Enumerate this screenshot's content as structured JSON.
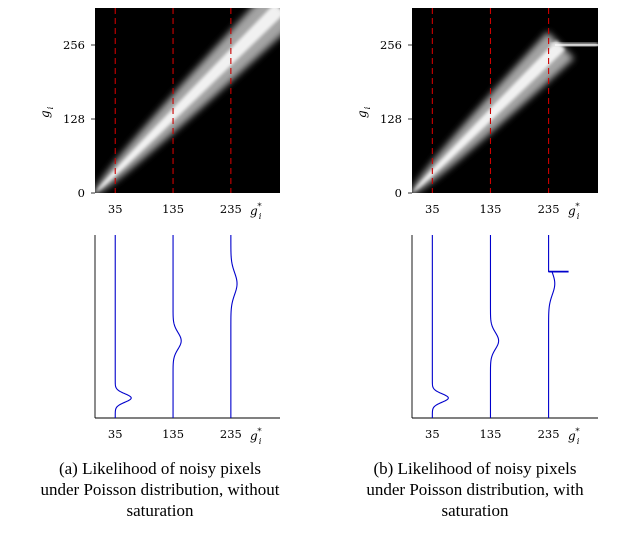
{
  "panels": [
    {
      "id": "a",
      "caption": [
        "(a) Likelihood of noisy pixels",
        "under Poisson distribution, without",
        "saturation"
      ],
      "saturation": false,
      "heatmap": {
        "y_ticks": [
          "0",
          "128",
          "256"
        ],
        "x_ticks": [
          "35",
          "135",
          "235"
        ],
        "ylabel": "g_i",
        "xlabel": "g_i^*"
      },
      "profiles": {
        "x_ticks": [
          "35",
          "135",
          "235"
        ],
        "xlabel": "g_i^*"
      }
    },
    {
      "id": "b",
      "caption": [
        "(b) Likelihood of noisy pixels",
        "under Poisson distribution, with",
        "saturation"
      ],
      "saturation": true,
      "heatmap": {
        "y_ticks": [
          "0",
          "128",
          "256"
        ],
        "x_ticks": [
          "35",
          "135",
          "235"
        ],
        "ylabel": "g_i",
        "xlabel": "g_i^*"
      },
      "profiles": {
        "x_ticks": [
          "35",
          "135",
          "235"
        ],
        "xlabel": "g_i^*"
      }
    }
  ],
  "chart_data": [
    {
      "type": "heatmap",
      "panel": "a",
      "x_ticks": [
        35,
        135,
        235
      ],
      "y_ticks": [
        0,
        128,
        256
      ],
      "dashed_lines_x": [
        35,
        135,
        235
      ],
      "saturation": false,
      "colors": {
        "background": "#000000",
        "band": "#ffffff",
        "dashed": "#cc0000"
      }
    },
    {
      "type": "heatmap",
      "panel": "b",
      "x_ticks": [
        35,
        135,
        235
      ],
      "y_ticks": [
        0,
        128,
        256
      ],
      "dashed_lines_x": [
        35,
        135,
        235
      ],
      "saturation": true,
      "colors": {
        "background": "#000000",
        "band": "#ffffff",
        "dashed": "#cc0000"
      }
    },
    {
      "type": "line",
      "panel": "a",
      "x_ticks": [
        35,
        135,
        235
      ],
      "series_at": [
        35,
        135,
        235
      ],
      "saturation": false,
      "color": "#0000cc"
    },
    {
      "type": "line",
      "panel": "b",
      "x_ticks": [
        35,
        135,
        235
      ],
      "series_at": [
        35,
        135,
        235
      ],
      "saturation": true,
      "color": "#0000cc"
    }
  ]
}
